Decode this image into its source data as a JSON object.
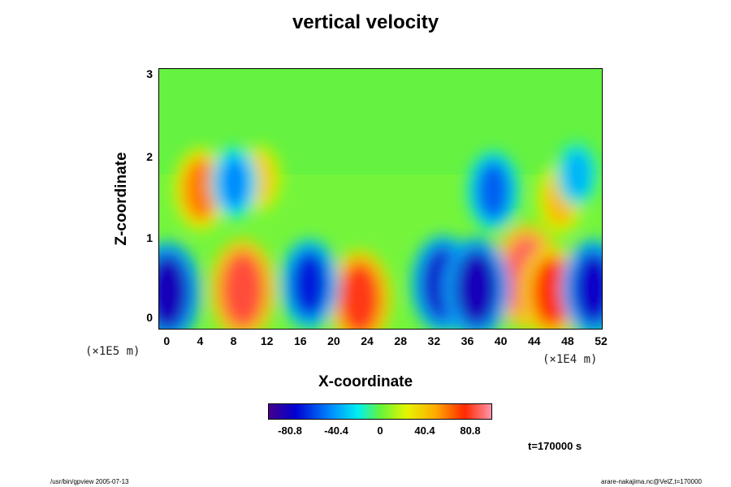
{
  "chart_data": {
    "type": "heatmap",
    "title": "vertical velocity",
    "xlabel": "X-coordinate",
    "ylabel": "Z-coordinate",
    "x_unit": "(×1E4 m)",
    "y_unit": "(×1E5 m)",
    "x_ticks": [
      "0",
      "4",
      "8",
      "12",
      "16",
      "20",
      "24",
      "28",
      "32",
      "36",
      "40",
      "44",
      "48",
      "52"
    ],
    "y_ticks": [
      "0",
      "1",
      "2",
      "3"
    ],
    "xlim": [
      -1,
      52
    ],
    "ylim": [
      -0.1,
      3.1
    ],
    "colorbar": {
      "ticks": [
        "-80.8",
        "-40.4",
        "0",
        "40.4",
        "80.8"
      ],
      "range": [
        -101,
        101
      ]
    },
    "features": [
      {
        "x": 9,
        "z": 0.38,
        "value": 85
      },
      {
        "x": 23,
        "z": 0.27,
        "value": 80
      },
      {
        "x": 43,
        "z": 0.55,
        "value": 90
      },
      {
        "x": 46,
        "z": 0.35,
        "value": 75
      },
      {
        "x": 4,
        "z": 1.62,
        "value": 60
      },
      {
        "x": 11,
        "z": 1.75,
        "value": 40
      },
      {
        "x": 47,
        "z": 1.5,
        "value": 45
      },
      {
        "x": 0,
        "z": 0.35,
        "value": -85
      },
      {
        "x": 17,
        "z": 0.45,
        "value": -70
      },
      {
        "x": 33,
        "z": 0.45,
        "value": -80
      },
      {
        "x": 37,
        "z": 0.4,
        "value": -85
      },
      {
        "x": 51,
        "z": 0.4,
        "value": -80
      },
      {
        "x": 8,
        "z": 1.7,
        "value": -45
      },
      {
        "x": 39,
        "z": 1.6,
        "value": -55
      },
      {
        "x": 49,
        "z": 1.8,
        "value": -35
      }
    ],
    "annotation": "t=170000 s"
  },
  "footer": {
    "left": "/usr/bin/gpview 2005-07-13",
    "right": "arare-nakajima.nc@VelZ,t=170000"
  }
}
